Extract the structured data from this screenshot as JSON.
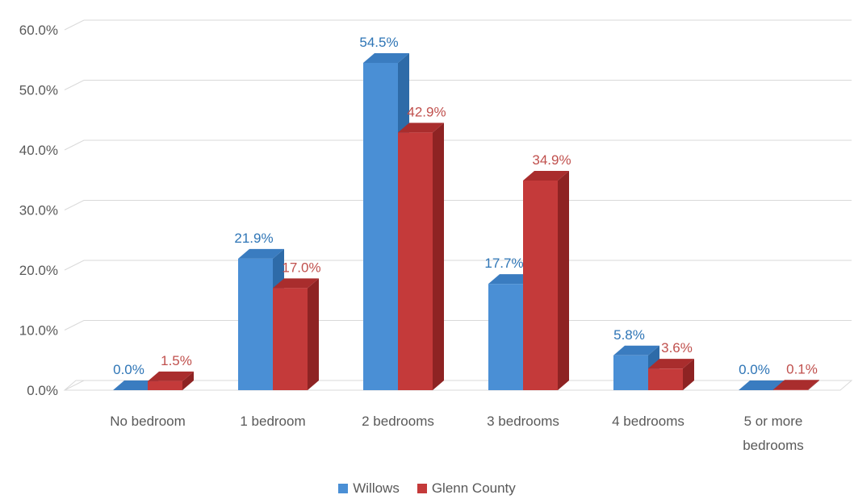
{
  "chart_data": {
    "type": "bar",
    "categories": [
      "No bedroom",
      "1 bedroom",
      "2 bedrooms",
      "3 bedrooms",
      "4 bedrooms",
      "5 or more bedrooms"
    ],
    "category_lines": [
      [
        "No bedroom"
      ],
      [
        "1 bedroom"
      ],
      [
        "2 bedrooms"
      ],
      [
        "3 bedrooms"
      ],
      [
        "4 bedrooms"
      ],
      [
        "5 or more",
        "bedrooms"
      ]
    ],
    "series": [
      {
        "name": "Willows",
        "values": [
          0.0,
          21.9,
          54.5,
          17.7,
          5.8,
          0.0
        ],
        "labels": [
          "0.0%",
          "21.9%",
          "54.5%",
          "17.7%",
          "5.8%",
          "0.0%"
        ],
        "color": "#4A8FD5",
        "side_color": "#2E6BA8",
        "top_color": "#3A7CC0",
        "label_color": "#2E75B6"
      },
      {
        "name": "Glenn County",
        "values": [
          1.5,
          17.0,
          42.9,
          34.9,
          3.6,
          0.1
        ],
        "labels": [
          "1.5%",
          "17.0%",
          "42.9%",
          "34.9%",
          "3.6%",
          "0.1%"
        ],
        "color": "#C43A3A",
        "side_color": "#8E2323",
        "top_color": "#A92D2D",
        "label_color": "#C0504D"
      }
    ],
    "ylim": [
      0,
      60
    ],
    "yticks": [
      0,
      10,
      20,
      30,
      40,
      50,
      60
    ],
    "ytick_labels": [
      "0.0%",
      "10.0%",
      "20.0%",
      "30.0%",
      "40.0%",
      "50.0%",
      "60.0%"
    ],
    "grid": true,
    "legend_position": "bottom",
    "xlabel": "",
    "ylabel": ""
  }
}
